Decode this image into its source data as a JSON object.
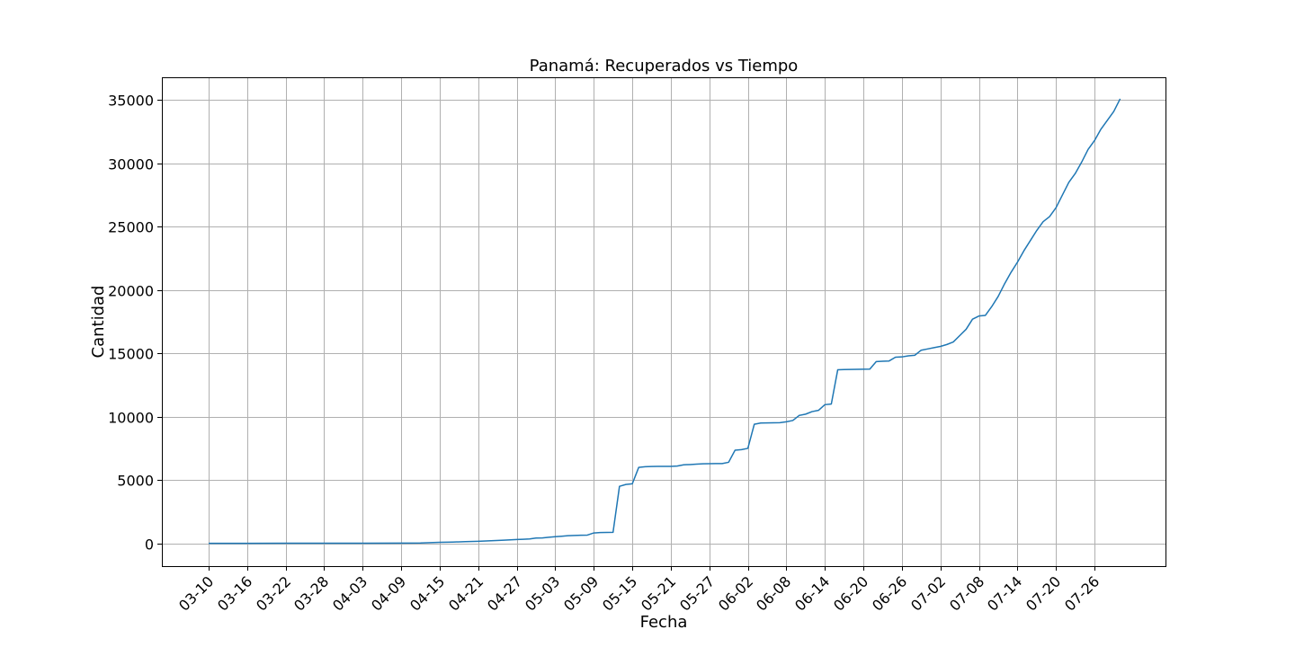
{
  "chart_data": {
    "type": "line",
    "title": "Panamá: Recuperados vs Tiempo",
    "xlabel": "Fecha",
    "ylabel": "Cantidad",
    "grid": true,
    "ylim": [
      -1800,
      36800
    ],
    "yticks": [
      0,
      5000,
      10000,
      15000,
      20000,
      25000,
      30000,
      35000
    ],
    "xticks": [
      "03-10",
      "03-16",
      "03-22",
      "03-28",
      "04-03",
      "04-09",
      "04-15",
      "04-21",
      "04-27",
      "05-03",
      "05-09",
      "05-15",
      "05-21",
      "05-27",
      "06-02",
      "06-08",
      "06-14",
      "06-20",
      "06-26",
      "07-02",
      "07-08",
      "07-14",
      "07-20",
      "07-26"
    ],
    "start_date": "03-10",
    "series": [
      {
        "name": "Recuperados",
        "color": "#1f77b4",
        "points": [
          [
            0,
            0
          ],
          [
            6,
            2
          ],
          [
            12,
            5
          ],
          [
            18,
            8
          ],
          [
            24,
            12
          ],
          [
            30,
            20
          ],
          [
            33,
            30
          ],
          [
            34,
            45
          ],
          [
            36,
            80
          ],
          [
            38,
            100
          ],
          [
            40,
            130
          ],
          [
            42,
            160
          ],
          [
            44,
            200
          ],
          [
            46,
            250
          ],
          [
            48,
            300
          ],
          [
            49,
            320
          ],
          [
            50,
            350
          ],
          [
            51,
            420
          ],
          [
            52,
            430
          ],
          [
            53,
            480
          ],
          [
            54,
            520
          ],
          [
            55,
            560
          ],
          [
            56,
            600
          ],
          [
            57,
            620
          ],
          [
            58,
            640
          ],
          [
            59,
            650
          ],
          [
            60,
            820
          ],
          [
            61,
            850
          ],
          [
            62,
            860
          ],
          [
            63,
            870
          ],
          [
            64,
            4500
          ],
          [
            65,
            4650
          ],
          [
            66,
            4700
          ],
          [
            67,
            6000
          ],
          [
            68,
            6050
          ],
          [
            69,
            6070
          ],
          [
            70,
            6080
          ],
          [
            71,
            6080
          ],
          [
            72,
            6080
          ],
          [
            73,
            6100
          ],
          [
            74,
            6200
          ],
          [
            75,
            6220
          ],
          [
            76,
            6250
          ],
          [
            77,
            6280
          ],
          [
            78,
            6290
          ],
          [
            79,
            6300
          ],
          [
            80,
            6300
          ],
          [
            81,
            6400
          ],
          [
            82,
            7350
          ],
          [
            83,
            7400
          ],
          [
            84,
            7500
          ],
          [
            85,
            9400
          ],
          [
            86,
            9500
          ],
          [
            87,
            9510
          ],
          [
            88,
            9520
          ],
          [
            89,
            9530
          ],
          [
            90,
            9600
          ],
          [
            91,
            9700
          ],
          [
            92,
            10100
          ],
          [
            93,
            10200
          ],
          [
            94,
            10400
          ],
          [
            95,
            10500
          ],
          [
            96,
            10950
          ],
          [
            97,
            11000
          ],
          [
            98,
            13700
          ],
          [
            99,
            13720
          ],
          [
            100,
            13730
          ],
          [
            101,
            13740
          ],
          [
            102,
            13750
          ],
          [
            103,
            13760
          ],
          [
            104,
            14350
          ],
          [
            105,
            14380
          ],
          [
            106,
            14400
          ],
          [
            107,
            14700
          ],
          [
            108,
            14720
          ],
          [
            109,
            14800
          ],
          [
            110,
            14850
          ],
          [
            111,
            15250
          ],
          [
            112,
            15350
          ],
          [
            113,
            15450
          ],
          [
            114,
            15550
          ],
          [
            115,
            15700
          ],
          [
            116,
            15900
          ],
          [
            117,
            16400
          ],
          [
            118,
            16900
          ],
          [
            119,
            17700
          ],
          [
            120,
            17950
          ],
          [
            121,
            18000
          ],
          [
            122,
            18700
          ],
          [
            123,
            19500
          ],
          [
            124,
            20500
          ],
          [
            125,
            21400
          ],
          [
            126,
            22200
          ],
          [
            127,
            23100
          ],
          [
            128,
            23900
          ],
          [
            129,
            24700
          ],
          [
            130,
            25400
          ],
          [
            131,
            25800
          ],
          [
            132,
            26500
          ],
          [
            133,
            27500
          ],
          [
            134,
            28500
          ],
          [
            135,
            29200
          ],
          [
            136,
            30100
          ],
          [
            137,
            31100
          ],
          [
            138,
            31800
          ],
          [
            139,
            32700
          ],
          [
            140,
            33400
          ],
          [
            141,
            34100
          ],
          [
            142,
            35100
          ]
        ]
      }
    ]
  }
}
